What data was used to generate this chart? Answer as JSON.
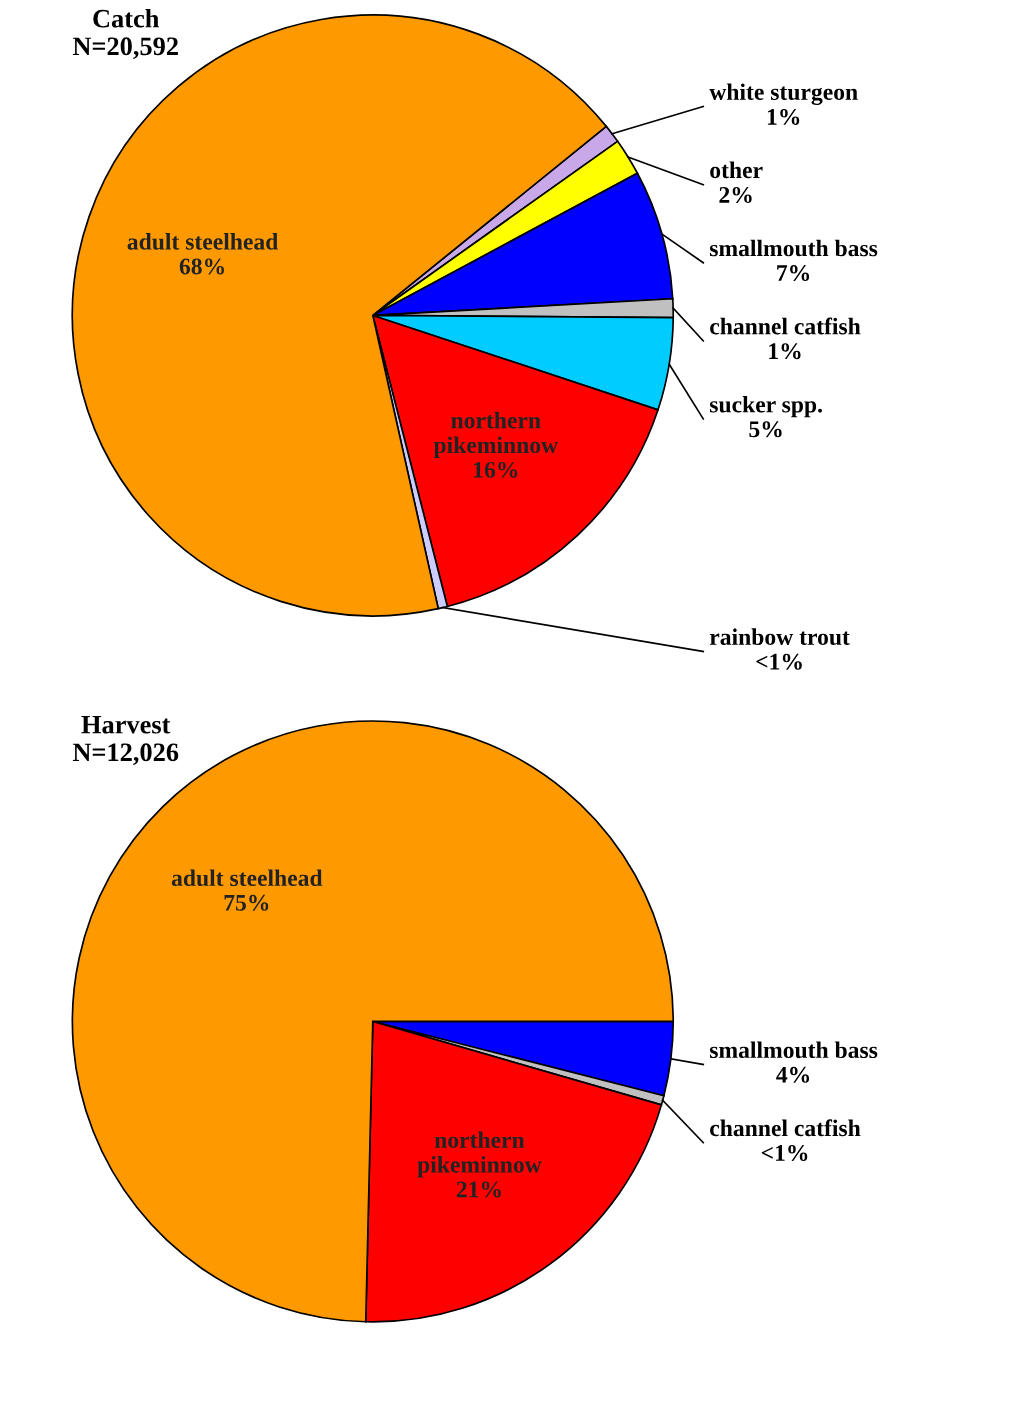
{
  "chart_data": [
    {
      "type": "pie",
      "title": "Catch",
      "subtitle": "N=20,592",
      "categories": [
        "white sturgeon",
        "other",
        "smallmouth bass",
        "channel catfish",
        "sucker spp.",
        "northern pikeminnow",
        "rainbow trout",
        "adult steelhead"
      ],
      "values": [
        1,
        2,
        7,
        1,
        5,
        16,
        0.5,
        68
      ],
      "colors": [
        "#c8a8e8",
        "#ffff00",
        "#0000ff",
        "#c0c0c0",
        "#00ccff",
        "#ff0000",
        "#ccccff",
        "#ff9900"
      ],
      "value_labels": [
        "1%",
        "2%",
        "7%",
        "1%",
        "5%",
        "16%",
        "<1%",
        "68%"
      ]
    },
    {
      "type": "pie",
      "title": "Harvest",
      "subtitle": "N=12,026",
      "categories": [
        "smallmouth bass",
        "channel catfish",
        "northern pikeminnow",
        "adult steelhead"
      ],
      "values": [
        4,
        0.5,
        21,
        75
      ],
      "colors": [
        "#0000ff",
        "#c0c0c0",
        "#ff0000",
        "#ff9900"
      ],
      "value_labels": [
        "4%",
        "<1%",
        "21%",
        "75%"
      ]
    }
  ]
}
